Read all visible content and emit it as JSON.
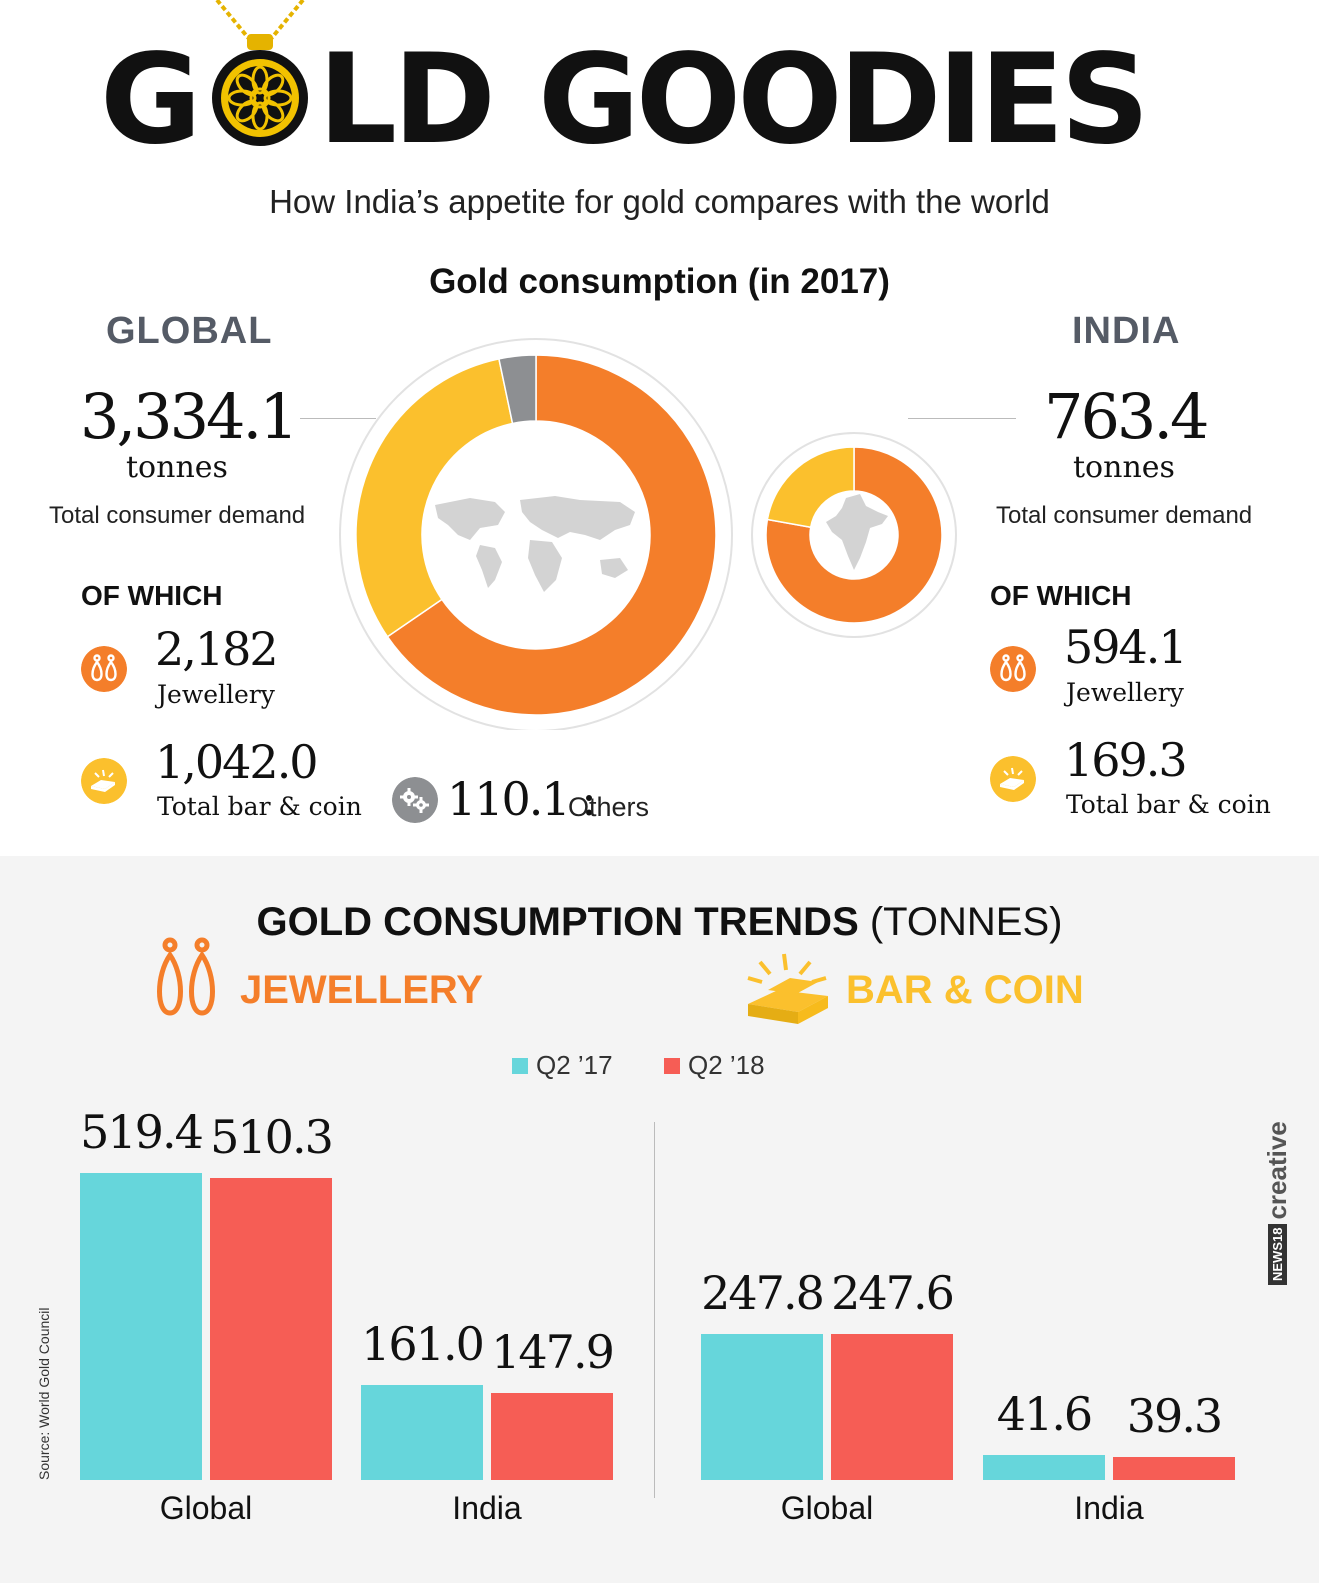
{
  "header": {
    "title_left": "G",
    "title_mid": "LD",
    "title_right": "GOODIES",
    "subtitle": "How India’s appetite for gold compares with the world"
  },
  "consumption": {
    "title": "Gold consumption (in 2017)",
    "global": {
      "region": "GLOBAL",
      "total": "3,334.1",
      "unit": "tonnes",
      "desc": "Total consumer demand",
      "of_which": "OF WHICH",
      "jewellery_value": "2,182",
      "jewellery_label": "Jewellery",
      "barcoin_value": "1,042.0",
      "barcoin_label": "Total bar & coin",
      "others_value": "110.1 :",
      "others_label": "Others"
    },
    "india": {
      "region": "INDIA",
      "total": "763.4",
      "unit": "tonnes",
      "desc": "Total consumer demand",
      "of_which": "OF WHICH",
      "jewellery_value": "594.1",
      "jewellery_label": "Jewellery",
      "barcoin_value": "169.3",
      "barcoin_label": "Total bar & coin"
    }
  },
  "trends": {
    "title_bold": "GOLD CONSUMPTION TRENDS",
    "title_rest": " (TONNES)",
    "jewellery_head": "JEWELLERY",
    "barcoin_head": "BAR & COIN",
    "legend": [
      "Q2 ’17",
      "Q2 ’18"
    ],
    "group_labels": [
      "Global",
      "India",
      "Global",
      "India"
    ]
  },
  "colors": {
    "orange": "#f47e2a",
    "yellow": "#fbc02d",
    "grey": "#8d8f92",
    "teal": "#66d6db",
    "red": "#f65d55",
    "jewellery_head": "#f47e2a",
    "barcoin_head": "#fbc02d"
  },
  "icons": [
    "necklace-pendant-icon",
    "earrings-icon",
    "gold-bars-icon",
    "gears-icon",
    "world-map-icon",
    "india-map-icon"
  ],
  "chart_data": [
    {
      "type": "pie",
      "title": "GLOBAL",
      "categories": [
        "Jewellery",
        "Total bar & coin",
        "Others"
      ],
      "values": [
        2182,
        1042.0,
        110.1
      ]
    },
    {
      "type": "pie",
      "title": "INDIA",
      "categories": [
        "Jewellery",
        "Total bar & coin"
      ],
      "values": [
        594.1,
        169.3
      ]
    },
    {
      "type": "bar",
      "title": "JEWELLERY",
      "categories": [
        "Global",
        "India"
      ],
      "series": [
        {
          "name": "Q2 ’17",
          "values": [
            519.4,
            161.0
          ]
        },
        {
          "name": "Q2 ’18",
          "values": [
            510.3,
            147.9
          ]
        }
      ],
      "value_labels": [
        [
          "519.4",
          "161.0"
        ],
        [
          "510.3",
          "147.9"
        ]
      ]
    },
    {
      "type": "bar",
      "title": "BAR & COIN",
      "categories": [
        "Global",
        "India"
      ],
      "series": [
        {
          "name": "Q2 ’17",
          "values": [
            247.8,
            41.6
          ]
        },
        {
          "name": "Q2 ’18",
          "values": [
            247.6,
            39.3
          ]
        }
      ],
      "value_labels": [
        [
          "247.8",
          "41.6"
        ],
        [
          "247.6",
          "39.3"
        ]
      ]
    }
  ],
  "footer": {
    "source": "Source: World Gold Council",
    "credit_badge": "NEWS18",
    "credit_text": "creative"
  }
}
